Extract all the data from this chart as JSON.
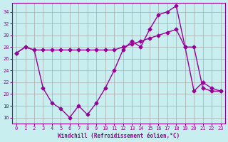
{
  "background_color": "#c8eef0",
  "grid_color": "#aaaaaa",
  "line_color": "#990099",
  "xlim": [
    -0.5,
    23.5
  ],
  "ylim": [
    15,
    35.5
  ],
  "yticks": [
    16,
    18,
    20,
    22,
    24,
    26,
    28,
    30,
    32,
    34
  ],
  "xticks": [
    0,
    1,
    2,
    3,
    4,
    5,
    6,
    7,
    8,
    9,
    10,
    11,
    12,
    13,
    14,
    15,
    16,
    17,
    18,
    19,
    20,
    21,
    22,
    23
  ],
  "series1_x": [
    0,
    1,
    2,
    3,
    4,
    5,
    6,
    7,
    8,
    9,
    10,
    11,
    12,
    13,
    14,
    15,
    16,
    17,
    18,
    19,
    20,
    21,
    22,
    23
  ],
  "series1_y": [
    27,
    28,
    27.5,
    27.5,
    27.5,
    27.5,
    27.5,
    27.5,
    27.5,
    27.5,
    27.5,
    27.5,
    28,
    28.5,
    29,
    29.5,
    30,
    30.5,
    31,
    28,
    28,
    21,
    20.5,
    20.5
  ],
  "series2_x": [
    0,
    1,
    2,
    3,
    4,
    5,
    6,
    7,
    8,
    9,
    10,
    11,
    12,
    13,
    14,
    15,
    16,
    17,
    18,
    19,
    20,
    21,
    22,
    23
  ],
  "series2_y": [
    27,
    28,
    27.5,
    21,
    18.5,
    17.5,
    16,
    18,
    16.5,
    18.5,
    21,
    24,
    27.5,
    29,
    28,
    31,
    33.5,
    34,
    35,
    28,
    20.5,
    22,
    21,
    20.5
  ],
  "xlabel": "Windchill (Refroidissement éolien,°C)"
}
